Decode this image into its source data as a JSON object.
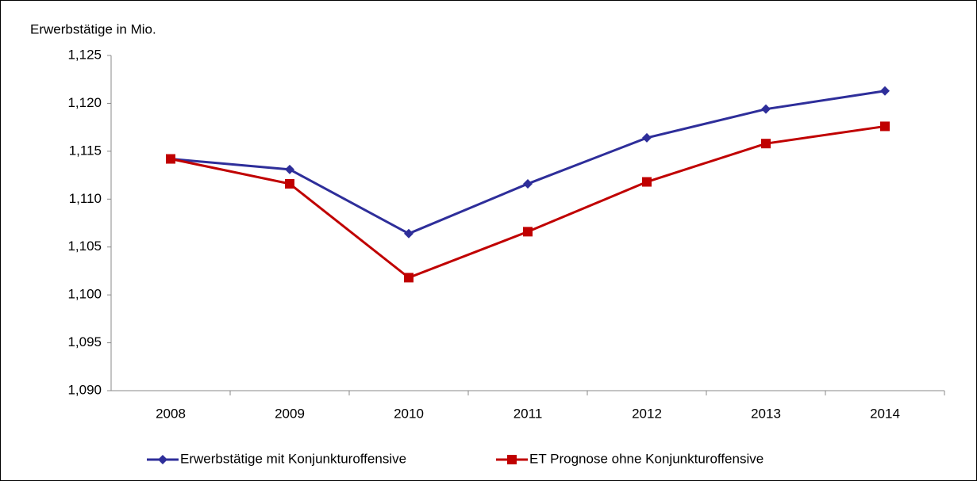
{
  "chart_data": {
    "type": "line",
    "y_axis_label": "Erwerbstätige in Mio.",
    "categories": [
      "2008",
      "2009",
      "2010",
      "2011",
      "2012",
      "2013",
      "2014"
    ],
    "series": [
      {
        "name": "Erwerbstätige mit Konjunkturoffensive",
        "color": "#2e2e9a",
        "marker": "diamond",
        "values": [
          1.1142,
          1.1131,
          1.1064,
          1.1116,
          1.1164,
          1.1194,
          1.1213
        ]
      },
      {
        "name": "ET Prognose ohne Konjunkturoffensive",
        "color": "#c00000",
        "marker": "square",
        "values": [
          1.1142,
          1.1116,
          1.1018,
          1.1066,
          1.1118,
          1.1158,
          1.1176
        ]
      }
    ],
    "ylim": [
      1.09,
      1.125
    ],
    "yticks": [
      {
        "value": 1.09,
        "label": "1,090"
      },
      {
        "value": 1.095,
        "label": "1,095"
      },
      {
        "value": 1.1,
        "label": "1,100"
      },
      {
        "value": 1.105,
        "label": "1,105"
      },
      {
        "value": 1.11,
        "label": "1,110"
      },
      {
        "value": 1.115,
        "label": "1,115"
      },
      {
        "value": 1.12,
        "label": "1,120"
      },
      {
        "value": 1.125,
        "label": "1,125"
      }
    ],
    "grid": false,
    "legend": "bottom"
  }
}
